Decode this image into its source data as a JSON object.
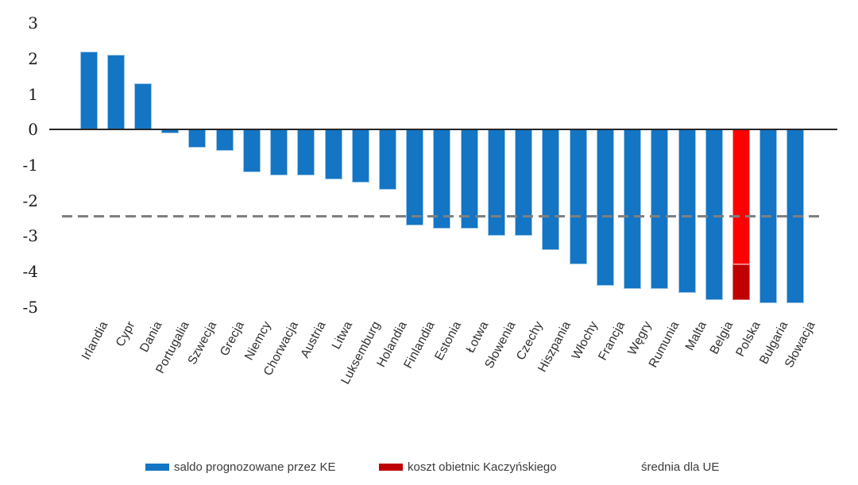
{
  "chart_data": {
    "type": "bar",
    "title": "",
    "categories": [
      "Irlandia",
      "Cypr",
      "Dania",
      "Portugalia",
      "Szwecja",
      "Grecja",
      "Niemcy",
      "Chorwacja",
      "Austria",
      "Litwa",
      "Luksemburg",
      "Holandia",
      "Finlandia",
      "Estonia",
      "Łotwa",
      "Słowenia",
      "Czechy",
      "Hiszpania",
      "Włochy",
      "Francja",
      "Węgry",
      "Rumunia",
      "Malta",
      "Belgia",
      "Polska",
      "Bułgaria",
      "Słowacja"
    ],
    "series": [
      {
        "name": "saldo prognozowane przez KE",
        "color": "#1375C4",
        "values": [
          2.2,
          2.1,
          1.3,
          -0.1,
          -0.5,
          -0.6,
          -1.2,
          -1.3,
          -1.3,
          -1.4,
          -1.5,
          -1.7,
          -2.7,
          -2.8,
          -2.8,
          -3.0,
          -3.0,
          -3.4,
          -3.8,
          -4.4,
          -4.5,
          -4.5,
          -4.6,
          -4.8,
          -3.8,
          -4.9,
          -4.9
        ]
      },
      {
        "name": "koszt obietnic Kaczyńskiego",
        "color": "#C00000",
        "values": [
          0,
          0,
          0,
          0,
          0,
          0,
          0,
          0,
          0,
          0,
          0,
          0,
          0,
          0,
          0,
          0,
          0,
          0,
          0,
          0,
          0,
          0,
          0,
          0,
          -1.0,
          0,
          0
        ]
      }
    ],
    "highlight": {
      "category": "Polska",
      "color": "#FF0000"
    },
    "reference_line": {
      "name": "średnia dla UE",
      "value": -2.45,
      "color": "#7F7F7F",
      "style": "dashed"
    },
    "yticks": [
      3,
      2,
      1,
      0,
      -1,
      -2,
      -3,
      -4,
      -5
    ],
    "ylim": [
      -5,
      3
    ],
    "xlabel": "",
    "ylabel": "",
    "grid": false,
    "legend_position": "bottom"
  }
}
